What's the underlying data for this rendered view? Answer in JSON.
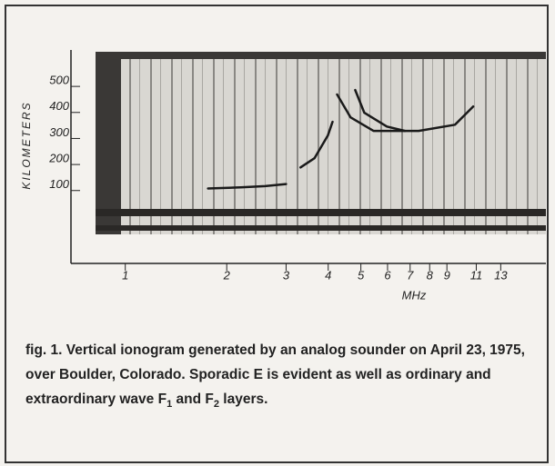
{
  "chart_data": {
    "type": "line",
    "ylabel": "KILOMETERS",
    "xlabel": "MHz",
    "xscale": "log",
    "xlim": [
      0.69,
      17.7
    ],
    "xticks": [
      1,
      2,
      3,
      4,
      5,
      6,
      7,
      8,
      9,
      11,
      13
    ],
    "ylim": [
      -180,
      640
    ],
    "yticks": [
      100,
      200,
      300,
      400,
      500
    ],
    "series": [
      {
        "color": "#1a1a1a",
        "x": [
          1.76,
          2.2,
          2.6,
          3.0
        ],
        "values": [
          108,
          112,
          117,
          125
        ]
      },
      {
        "color": "#1a1a1a",
        "x": [
          3.31,
          3.64,
          3.99,
          4.12
        ],
        "values": [
          189,
          224,
          311,
          364
        ]
      },
      {
        "color": "#1a1a1a",
        "x": [
          4.25,
          4.66,
          5.45,
          7.42,
          9.51,
          10.77
        ],
        "values": [
          469,
          381,
          329,
          329,
          353,
          423
        ]
      },
      {
        "color": "#1a1a1a",
        "x": [
          4.81,
          5.12,
          5.97,
          6.76
        ],
        "values": [
          486,
          399,
          346,
          329
        ]
      }
    ]
  },
  "caption": [
    "fig. 1. Vertical ionogram generated by an analog sounder on April 23, 1975, over Boulder, Colorado. Sporadic E is evident as well as ordinary and extraordinary wave F",
    "1",
    " and F",
    "2",
    " layers."
  ]
}
